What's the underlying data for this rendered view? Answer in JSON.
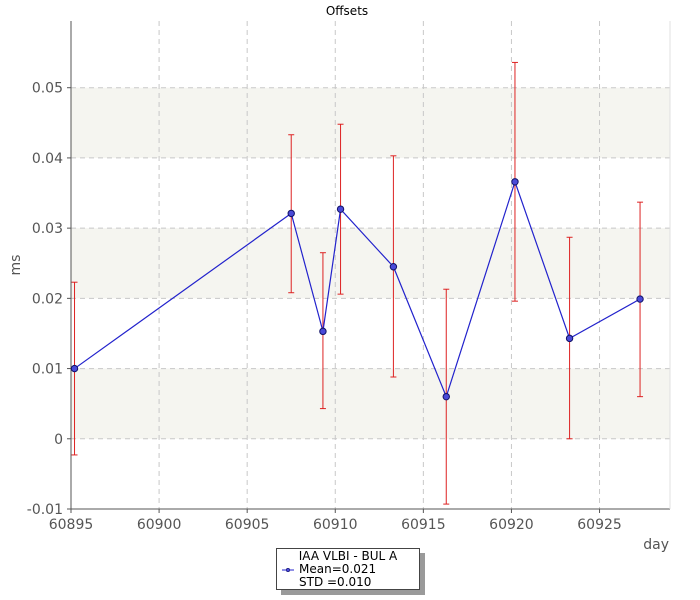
{
  "chart_data": {
    "type": "line",
    "title": "Offsets",
    "xlabel": "day",
    "ylabel": "ms",
    "xlim": [
      60895,
      60929
    ],
    "ylim": [
      -0.01,
      0.0595
    ],
    "x_ticks": [
      60895,
      60900,
      60905,
      60910,
      60915,
      60920,
      60925
    ],
    "x_tick_labels": [
      "60895",
      "60900",
      "60905",
      "60910",
      "60915",
      "60920",
      "60925"
    ],
    "y_ticks": [
      -0.01,
      0,
      0.01,
      0.02,
      0.03,
      0.04,
      0.05
    ],
    "y_tick_labels": [
      "-0.01",
      "0",
      "0.01",
      "0.02",
      "0.03",
      "0.04",
      "0.05"
    ],
    "grid": true,
    "bands": [
      [
        0,
        0.01
      ],
      [
        0.02,
        0.03
      ],
      [
        0.04,
        0.05
      ]
    ],
    "colors": {
      "line": "#2222cc",
      "marker_fill": "#4a4ad8",
      "marker_edge": "#111166",
      "error_bar": "#dd2222",
      "band": "#f5f5f0",
      "grid": "#c8c8c8",
      "axis": "#555555"
    },
    "series": [
      {
        "x": [
          60895.2,
          60907.5,
          60909.3,
          60910.3,
          60913.3,
          60916.3,
          60920.2,
          60923.3,
          60927.3
        ],
        "y": [
          0.01,
          0.0321,
          0.0153,
          0.0327,
          0.0245,
          0.006,
          0.0366,
          0.0143,
          0.0199
        ],
        "err_low": [
          -0.0023,
          0.0208,
          0.0043,
          0.0206,
          0.0088,
          -0.0093,
          0.0196,
          0.0,
          0.006
        ],
        "err_high": [
          0.0223,
          0.0433,
          0.0265,
          0.0448,
          0.0403,
          0.0213,
          0.0536,
          0.0287,
          0.0337
        ]
      }
    ],
    "legend": {
      "position": "bottom-center",
      "title": "IAA VLBI - BUL A",
      "mean": "Mean=0.021",
      "std": "STD =0.010"
    }
  }
}
